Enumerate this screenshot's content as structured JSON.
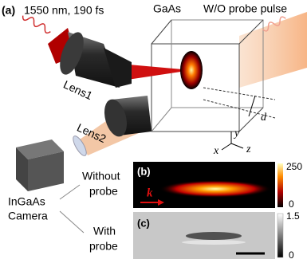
{
  "panel_a": {
    "label": "(a)",
    "pulse": "1550 nm, 190 fs",
    "sample": "GaAs",
    "probe": "W/O probe pulse",
    "lens1": "Lens1",
    "lens2": "Lens2",
    "camera": [
      "InGaAs",
      "Camera"
    ],
    "thickness": "d",
    "axes": [
      "x",
      "y",
      "z"
    ]
  },
  "panel_b": {
    "label": "(b)",
    "condition": [
      "Without",
      "probe"
    ],
    "wavevector": "k",
    "colorbar": [
      "250",
      "0"
    ]
  },
  "panel_c": {
    "label": "(c)",
    "condition": [
      "With",
      "probe"
    ],
    "colorbar": [
      "1.5",
      "0"
    ]
  }
}
